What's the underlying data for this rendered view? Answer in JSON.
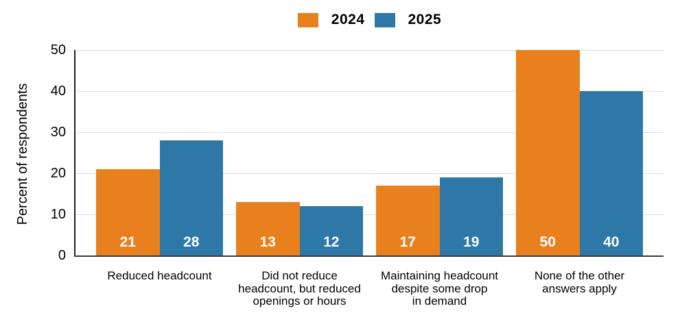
{
  "chart_data": {
    "type": "bar",
    "categories": [
      "Reduced headcount",
      "Did not reduce\nheadcount, but reduced\nopenings or hours",
      "Maintaining headcount\ndespite some drop\nin demand",
      "None of the other\nanswers apply"
    ],
    "series": [
      {
        "name": "2024",
        "color": "#E8801E",
        "values": [
          21,
          13,
          17,
          50
        ]
      },
      {
        "name": "2025",
        "color": "#2E78A8",
        "values": [
          28,
          12,
          19,
          40
        ]
      }
    ],
    "title": "",
    "xlabel": "",
    "ylabel": "Percent of respondents",
    "ylim": [
      0,
      50
    ],
    "yticks": [
      0,
      10,
      20,
      30,
      40,
      50
    ],
    "grid": true,
    "bar_value_labels": [
      [
        "21",
        "13",
        "17",
        "50"
      ],
      [
        "28",
        "12",
        "19",
        "40"
      ]
    ],
    "legend_position": "top-center"
  },
  "colors": {
    "series_2024": "#E8801E",
    "series_2025": "#2E78A8",
    "gridline": "#dcdcdc",
    "axis": "#2b2b2b",
    "value_label_text": "#ffffff",
    "text": "#000000",
    "background": "#ffffff"
  }
}
